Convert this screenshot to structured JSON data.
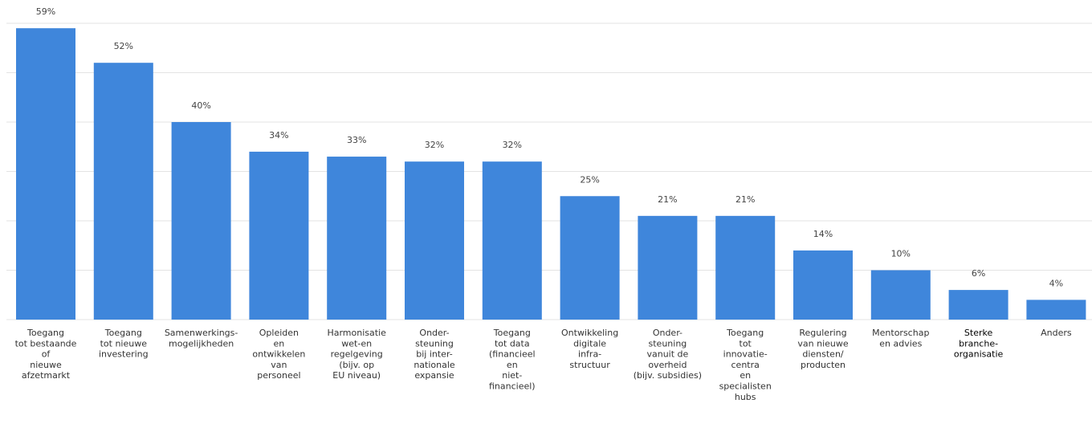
{
  "chart_data": {
    "type": "bar",
    "title": "",
    "xlabel": "",
    "ylabel": "",
    "ylim": [
      0,
      60
    ],
    "grid": true,
    "bar_color": "#3f86db",
    "value_suffix": "%",
    "categories": [
      "Toegang tot bestaande of nieuwe afzetmarkt",
      "Toegang tot nieuwe investering",
      "Samenwerkings-mogelijkheden",
      "Opleiden en ontwikkelen van personeel",
      "Harmonisatie wet-en regelgeving (bijv. op EU niveau)",
      "Onder-steuning bij inter-nationale expansie",
      "Toegang tot data (financieel en niet-financieel)",
      "Ontwikkeling digitale infra-structuur",
      "Onder-steuning vanuit de overheid (bijv. subsidies)",
      "Toegang tot innovatie-centra en specialisten hubs",
      "Regulering van nieuwe diensten/ producten",
      "Mentorschap en advies",
      "Sterke branche-organisatie",
      "Anders"
    ],
    "category_lines": [
      [
        "Toegang",
        "tot bestaande",
        "of",
        "nieuwe",
        "afzetmarkt"
      ],
      [
        "Toegang",
        "tot nieuwe",
        "investering"
      ],
      [
        "Samenwerkings-",
        "mogelijkheden"
      ],
      [
        "Opleiden",
        "en",
        "ontwikkelen",
        "van",
        "personeel"
      ],
      [
        "Harmonisatie",
        "wet-en",
        "regelgeving",
        "(bijv. op",
        "EU niveau)"
      ],
      [
        "Onder-",
        "steuning",
        "bij inter-",
        "nationale",
        "expansie"
      ],
      [
        "Toegang",
        "tot data",
        "(financieel",
        "en",
        "niet-",
        "financieel)"
      ],
      [
        "Ontwikkeling",
        "digitale",
        "infra-",
        "structuur"
      ],
      [
        "Onder-",
        "steuning",
        "vanuit de",
        "overheid",
        "(bijv. subsidies)"
      ],
      [
        "Toegang",
        "tot",
        "innovatie-",
        "centra",
        "en",
        "specialisten",
        "hubs"
      ],
      [
        "Regulering",
        "van nieuwe",
        "diensten/",
        "producten"
      ],
      [
        "Mentorschap",
        "en advies"
      ],
      [
        "Sterke",
        "branche-",
        "organisatie"
      ],
      [
        "Anders"
      ]
    ],
    "values": [
      59,
      52,
      40,
      34,
      33,
      32,
      32,
      25,
      21,
      21,
      14,
      10,
      6,
      4
    ],
    "value_labels": [
      "59%",
      "52%",
      "40%",
      "34%",
      "33%",
      "32%",
      "32%",
      "25%",
      "21%",
      "21%",
      "14%",
      "10%",
      "6%",
      "4%"
    ]
  }
}
